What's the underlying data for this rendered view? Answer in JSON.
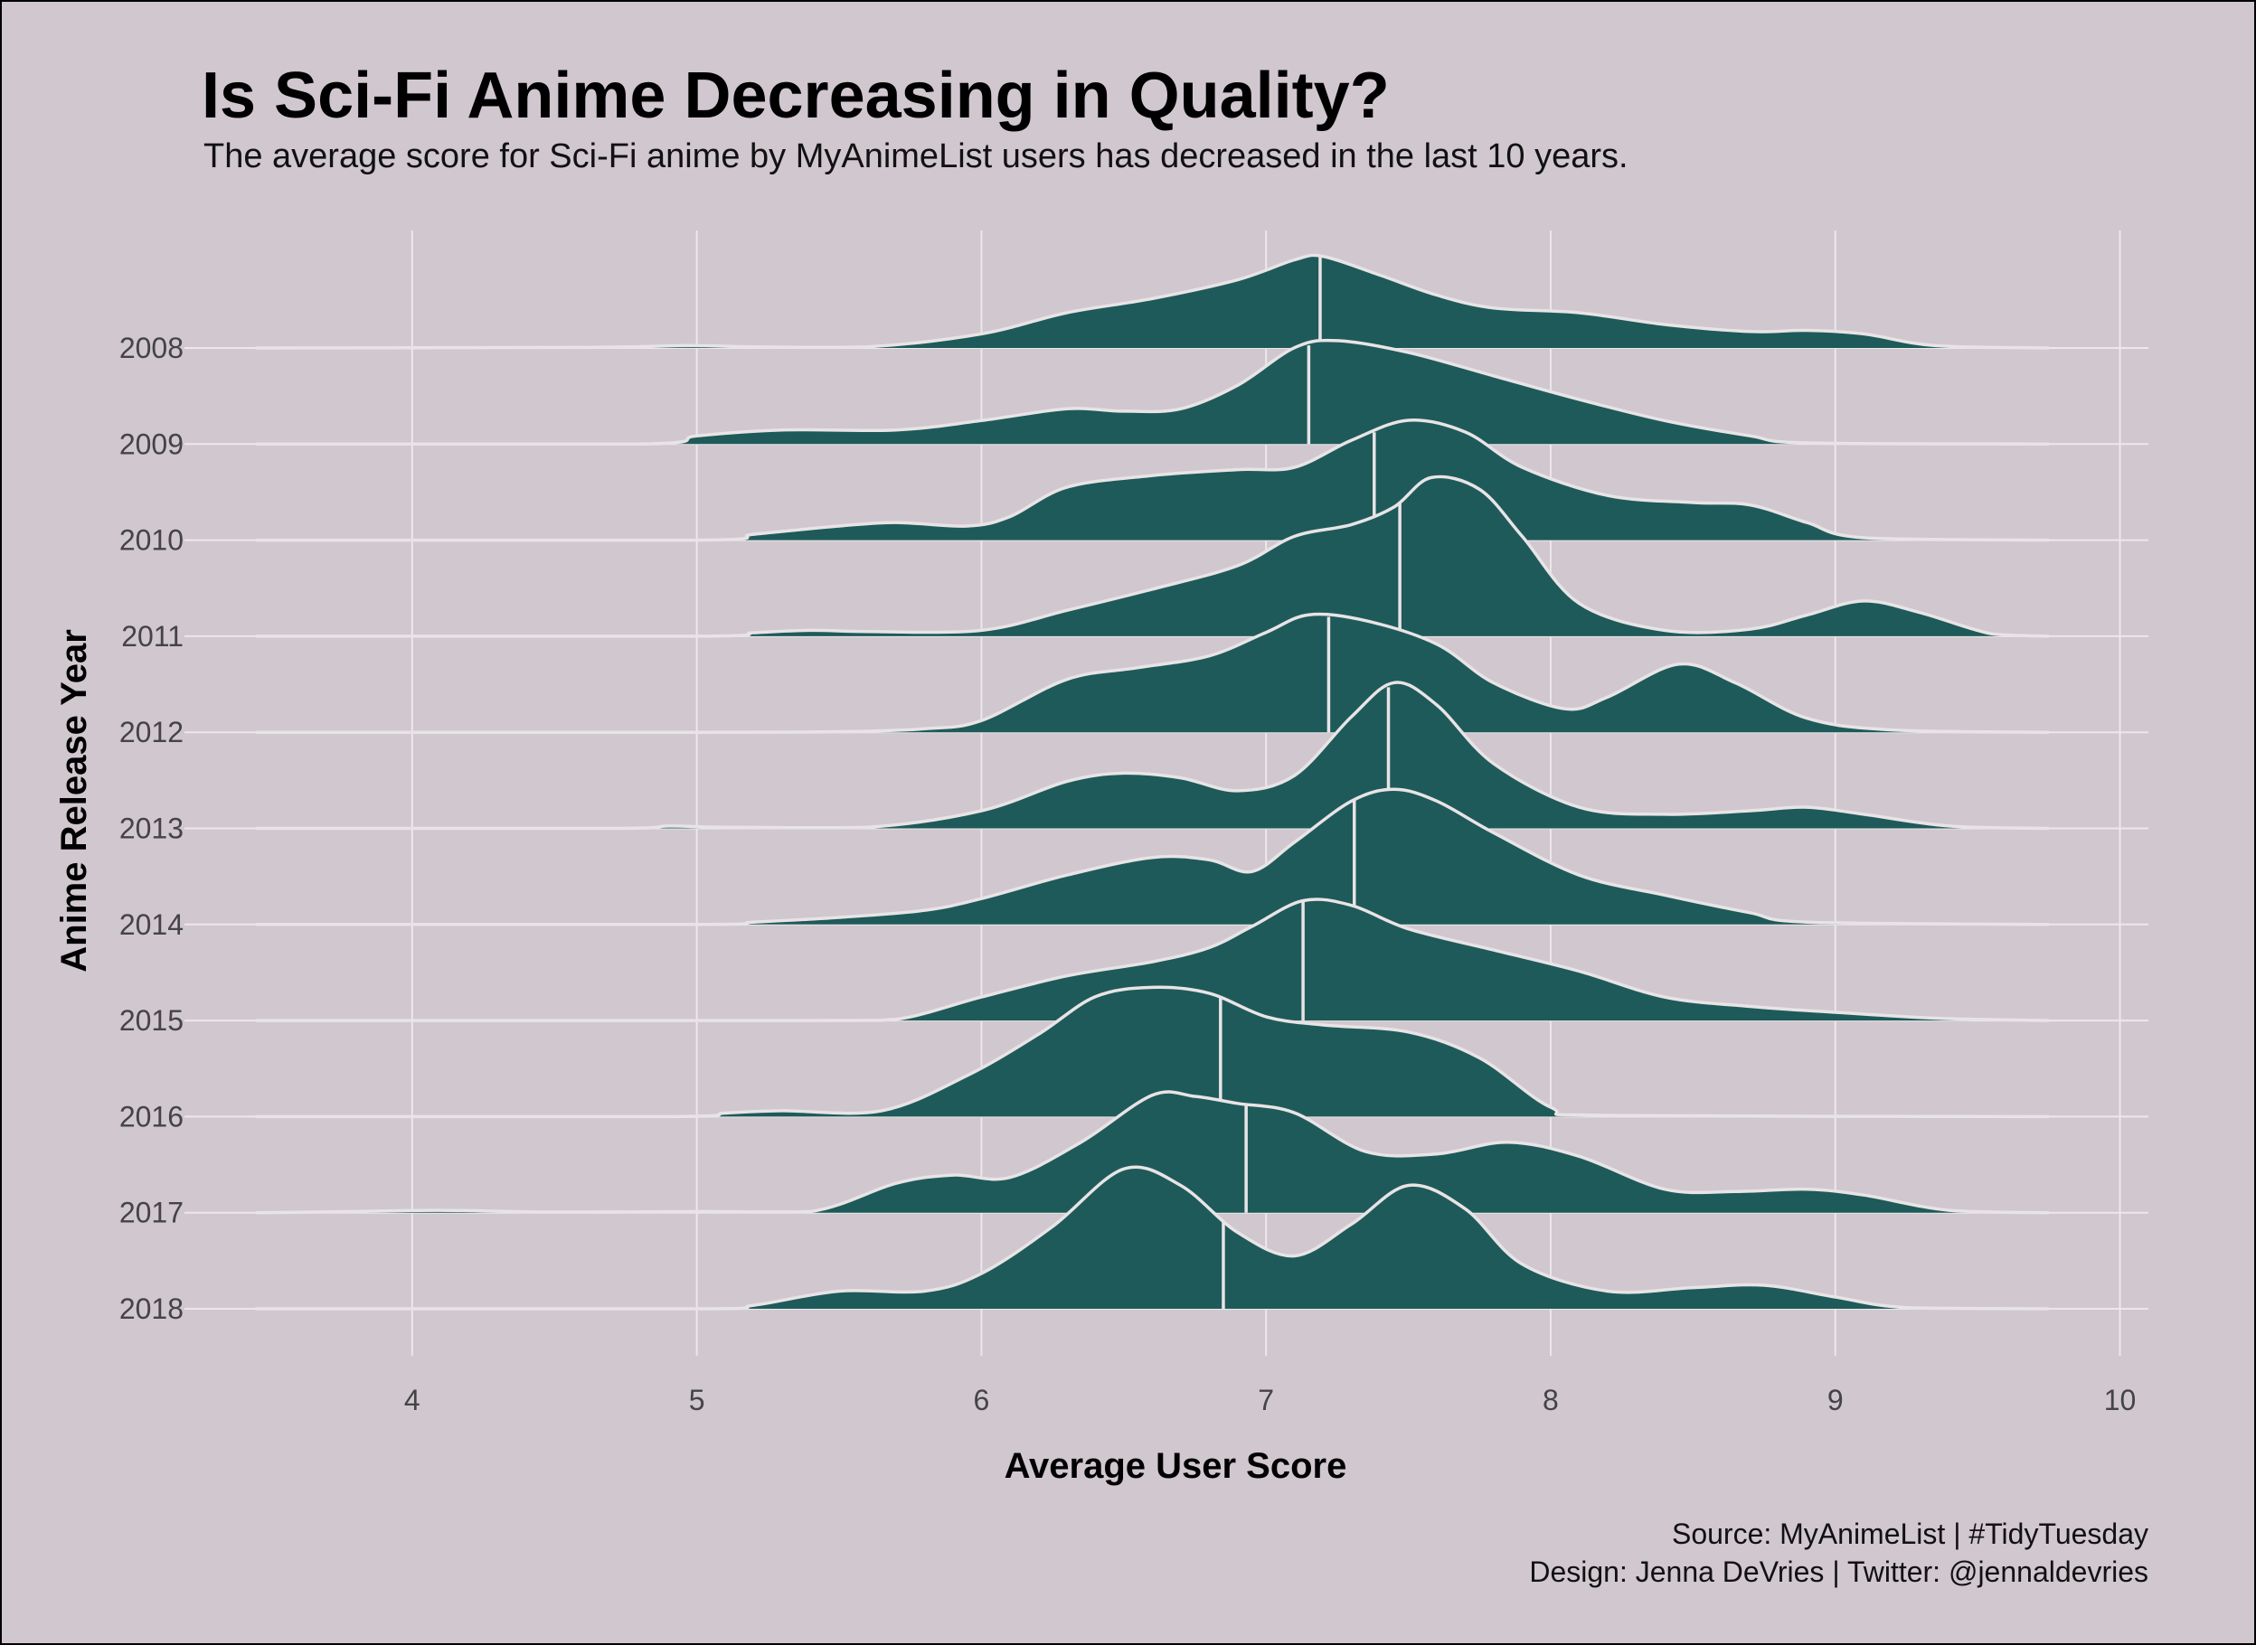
{
  "chart_data": {
    "type": "ridgeline",
    "title": "Is Sci-Fi Anime Decreasing in Quality?",
    "subtitle": "The average score for Sci-Fi anime by MyAnimeList users has decreased in the last 10 years.",
    "xlabel": "Average User Score",
    "ylabel": "Anime Release Year",
    "caption": [
      "Source: MyAnimeList | #TidyTuesday",
      "Design: Jenna DeVries | Twitter: @jennaldevries"
    ],
    "xlim": [
      3.2,
      10.1
    ],
    "xticks": [
      4,
      5,
      6,
      7,
      8,
      9,
      10
    ],
    "categories": [
      "2008",
      "2009",
      "2010",
      "2011",
      "2012",
      "2013",
      "2014",
      "2015",
      "2016",
      "2017",
      "2018"
    ],
    "fill_color": "#1f5a5a",
    "line_color": "#e8e4e6",
    "background_color": "#d1c7cf",
    "grid": true,
    "series": [
      {
        "name": "2008",
        "median": 7.19,
        "density": [
          [
            3.45,
            0
          ],
          [
            4.6,
            0.005
          ],
          [
            4.97,
            0.02
          ],
          [
            5.2,
            0.01
          ],
          [
            5.6,
            0.01
          ],
          [
            6.0,
            0.12
          ],
          [
            6.3,
            0.3
          ],
          [
            6.6,
            0.42
          ],
          [
            6.9,
            0.58
          ],
          [
            7.1,
            0.75
          ],
          [
            7.2,
            0.78
          ],
          [
            7.4,
            0.62
          ],
          [
            7.6,
            0.45
          ],
          [
            7.8,
            0.34
          ],
          [
            8.1,
            0.3
          ],
          [
            8.4,
            0.2
          ],
          [
            8.7,
            0.14
          ],
          [
            8.9,
            0.15
          ],
          [
            9.1,
            0.12
          ],
          [
            9.35,
            0.02
          ],
          [
            9.75,
            0
          ]
        ]
      },
      {
        "name": "2009",
        "median": 7.15,
        "density": [
          [
            3.45,
            0
          ],
          [
            4.8,
            0
          ],
          [
            5.0,
            0.07
          ],
          [
            5.3,
            0.12
          ],
          [
            5.7,
            0.12
          ],
          [
            6.0,
            0.2
          ],
          [
            6.3,
            0.3
          ],
          [
            6.5,
            0.28
          ],
          [
            6.7,
            0.3
          ],
          [
            6.9,
            0.5
          ],
          [
            7.1,
            0.82
          ],
          [
            7.25,
            0.88
          ],
          [
            7.5,
            0.78
          ],
          [
            7.8,
            0.58
          ],
          [
            8.1,
            0.38
          ],
          [
            8.4,
            0.2
          ],
          [
            8.7,
            0.07
          ],
          [
            8.9,
            0.01
          ],
          [
            9.75,
            0
          ]
        ]
      },
      {
        "name": "2010",
        "median": 7.38,
        "density": [
          [
            3.45,
            0
          ],
          [
            5.0,
            0
          ],
          [
            5.2,
            0.05
          ],
          [
            5.5,
            0.12
          ],
          [
            5.7,
            0.15
          ],
          [
            5.95,
            0.12
          ],
          [
            6.1,
            0.2
          ],
          [
            6.3,
            0.45
          ],
          [
            6.6,
            0.55
          ],
          [
            6.9,
            0.6
          ],
          [
            7.1,
            0.62
          ],
          [
            7.3,
            0.85
          ],
          [
            7.5,
            1.02
          ],
          [
            7.7,
            0.92
          ],
          [
            7.9,
            0.62
          ],
          [
            8.2,
            0.38
          ],
          [
            8.5,
            0.32
          ],
          [
            8.7,
            0.3
          ],
          [
            8.9,
            0.15
          ],
          [
            9.1,
            0.02
          ],
          [
            9.75,
            0
          ]
        ]
      },
      {
        "name": "2011",
        "median": 7.47,
        "density": [
          [
            3.45,
            0
          ],
          [
            5.0,
            0
          ],
          [
            5.2,
            0.03
          ],
          [
            5.4,
            0.05
          ],
          [
            5.6,
            0.04
          ],
          [
            6.0,
            0.05
          ],
          [
            6.3,
            0.22
          ],
          [
            6.6,
            0.4
          ],
          [
            6.9,
            0.6
          ],
          [
            7.1,
            0.85
          ],
          [
            7.3,
            0.95
          ],
          [
            7.45,
            1.1
          ],
          [
            7.58,
            1.35
          ],
          [
            7.75,
            1.25
          ],
          [
            7.9,
            0.85
          ],
          [
            8.1,
            0.28
          ],
          [
            8.4,
            0.05
          ],
          [
            8.7,
            0.06
          ],
          [
            8.9,
            0.18
          ],
          [
            9.1,
            0.3
          ],
          [
            9.3,
            0.2
          ],
          [
            9.55,
            0.02
          ],
          [
            9.75,
            0
          ]
        ]
      },
      {
        "name": "2012",
        "median": 7.22,
        "density": [
          [
            3.45,
            0
          ],
          [
            5.0,
            0
          ],
          [
            5.5,
            0.005
          ],
          [
            5.8,
            0.03
          ],
          [
            6.0,
            0.1
          ],
          [
            6.3,
            0.45
          ],
          [
            6.55,
            0.55
          ],
          [
            6.8,
            0.65
          ],
          [
            7.0,
            0.85
          ],
          [
            7.15,
            1.0
          ],
          [
            7.35,
            0.95
          ],
          [
            7.6,
            0.75
          ],
          [
            7.8,
            0.42
          ],
          [
            8.05,
            0.2
          ],
          [
            8.2,
            0.3
          ],
          [
            8.45,
            0.58
          ],
          [
            8.65,
            0.42
          ],
          [
            8.9,
            0.12
          ],
          [
            9.2,
            0.02
          ],
          [
            9.75,
            0
          ]
        ]
      },
      {
        "name": "2013",
        "median": 7.43,
        "density": [
          [
            3.45,
            0
          ],
          [
            4.7,
            0
          ],
          [
            4.9,
            0.02
          ],
          [
            5.1,
            0.01
          ],
          [
            5.6,
            0.01
          ],
          [
            6.0,
            0.15
          ],
          [
            6.3,
            0.4
          ],
          [
            6.5,
            0.47
          ],
          [
            6.7,
            0.43
          ],
          [
            6.9,
            0.32
          ],
          [
            7.1,
            0.45
          ],
          [
            7.3,
            0.95
          ],
          [
            7.45,
            1.24
          ],
          [
            7.6,
            1.05
          ],
          [
            7.8,
            0.55
          ],
          [
            8.1,
            0.18
          ],
          [
            8.4,
            0.12
          ],
          [
            8.7,
            0.15
          ],
          [
            8.9,
            0.18
          ],
          [
            9.1,
            0.12
          ],
          [
            9.4,
            0.02
          ],
          [
            9.75,
            0
          ]
        ]
      },
      {
        "name": "2014",
        "median": 7.31,
        "density": [
          [
            3.45,
            0
          ],
          [
            5.0,
            0
          ],
          [
            5.2,
            0.02
          ],
          [
            5.5,
            0.06
          ],
          [
            5.8,
            0.12
          ],
          [
            6.0,
            0.22
          ],
          [
            6.3,
            0.42
          ],
          [
            6.6,
            0.57
          ],
          [
            6.8,
            0.55
          ],
          [
            6.95,
            0.45
          ],
          [
            7.1,
            0.7
          ],
          [
            7.3,
            1.05
          ],
          [
            7.45,
            1.15
          ],
          [
            7.6,
            1.05
          ],
          [
            7.8,
            0.78
          ],
          [
            8.1,
            0.42
          ],
          [
            8.4,
            0.25
          ],
          [
            8.7,
            0.1
          ],
          [
            8.9,
            0.02
          ],
          [
            9.75,
            0
          ]
        ]
      },
      {
        "name": "2015",
        "median": 7.13,
        "density": [
          [
            3.45,
            0
          ],
          [
            5.4,
            0
          ],
          [
            5.7,
            0.01
          ],
          [
            6.0,
            0.2
          ],
          [
            6.3,
            0.38
          ],
          [
            6.6,
            0.5
          ],
          [
            6.8,
            0.62
          ],
          [
            6.95,
            0.8
          ],
          [
            7.13,
            1.02
          ],
          [
            7.3,
            0.98
          ],
          [
            7.5,
            0.78
          ],
          [
            7.8,
            0.6
          ],
          [
            8.1,
            0.42
          ],
          [
            8.4,
            0.2
          ],
          [
            8.7,
            0.12
          ],
          [
            9.0,
            0.07
          ],
          [
            9.35,
            0.02
          ],
          [
            9.75,
            0
          ]
        ]
      },
      {
        "name": "2016",
        "median": 6.84,
        "density": [
          [
            3.45,
            0
          ],
          [
            4.9,
            0
          ],
          [
            5.1,
            0.03
          ],
          [
            5.3,
            0.05
          ],
          [
            5.65,
            0.05
          ],
          [
            5.95,
            0.35
          ],
          [
            6.2,
            0.7
          ],
          [
            6.4,
            1.02
          ],
          [
            6.6,
            1.1
          ],
          [
            6.8,
            1.05
          ],
          [
            7.0,
            0.85
          ],
          [
            7.2,
            0.78
          ],
          [
            7.5,
            0.72
          ],
          [
            7.75,
            0.5
          ],
          [
            8.0,
            0.08
          ],
          [
            8.2,
            0.01
          ],
          [
            9.75,
            0
          ]
        ]
      },
      {
        "name": "2017",
        "median": 6.93,
        "density": [
          [
            3.45,
            0
          ],
          [
            3.8,
            0.01
          ],
          [
            4.1,
            0.02
          ],
          [
            4.5,
            0.005
          ],
          [
            5.0,
            0.01
          ],
          [
            5.4,
            0.01
          ],
          [
            5.7,
            0.25
          ],
          [
            5.9,
            0.32
          ],
          [
            6.1,
            0.3
          ],
          [
            6.35,
            0.6
          ],
          [
            6.6,
            1.0
          ],
          [
            6.75,
            0.99
          ],
          [
            6.9,
            0.93
          ],
          [
            7.1,
            0.85
          ],
          [
            7.35,
            0.52
          ],
          [
            7.6,
            0.5
          ],
          [
            7.85,
            0.6
          ],
          [
            8.1,
            0.48
          ],
          [
            8.4,
            0.2
          ],
          [
            8.65,
            0.18
          ],
          [
            8.9,
            0.2
          ],
          [
            9.1,
            0.15
          ],
          [
            9.4,
            0.02
          ],
          [
            9.75,
            0
          ]
        ]
      },
      {
        "name": "2018",
        "median": 6.85,
        "density": [
          [
            3.45,
            0
          ],
          [
            5.0,
            0
          ],
          [
            5.2,
            0.03
          ],
          [
            5.5,
            0.15
          ],
          [
            5.8,
            0.15
          ],
          [
            6.0,
            0.3
          ],
          [
            6.25,
            0.7
          ],
          [
            6.5,
            1.19
          ],
          [
            6.7,
            1.05
          ],
          [
            6.9,
            0.65
          ],
          [
            7.1,
            0.45
          ],
          [
            7.3,
            0.72
          ],
          [
            7.5,
            1.05
          ],
          [
            7.7,
            0.85
          ],
          [
            7.9,
            0.38
          ],
          [
            8.2,
            0.15
          ],
          [
            8.5,
            0.18
          ],
          [
            8.75,
            0.2
          ],
          [
            9.0,
            0.1
          ],
          [
            9.25,
            0.01
          ],
          [
            9.75,
            0
          ]
        ]
      }
    ]
  }
}
